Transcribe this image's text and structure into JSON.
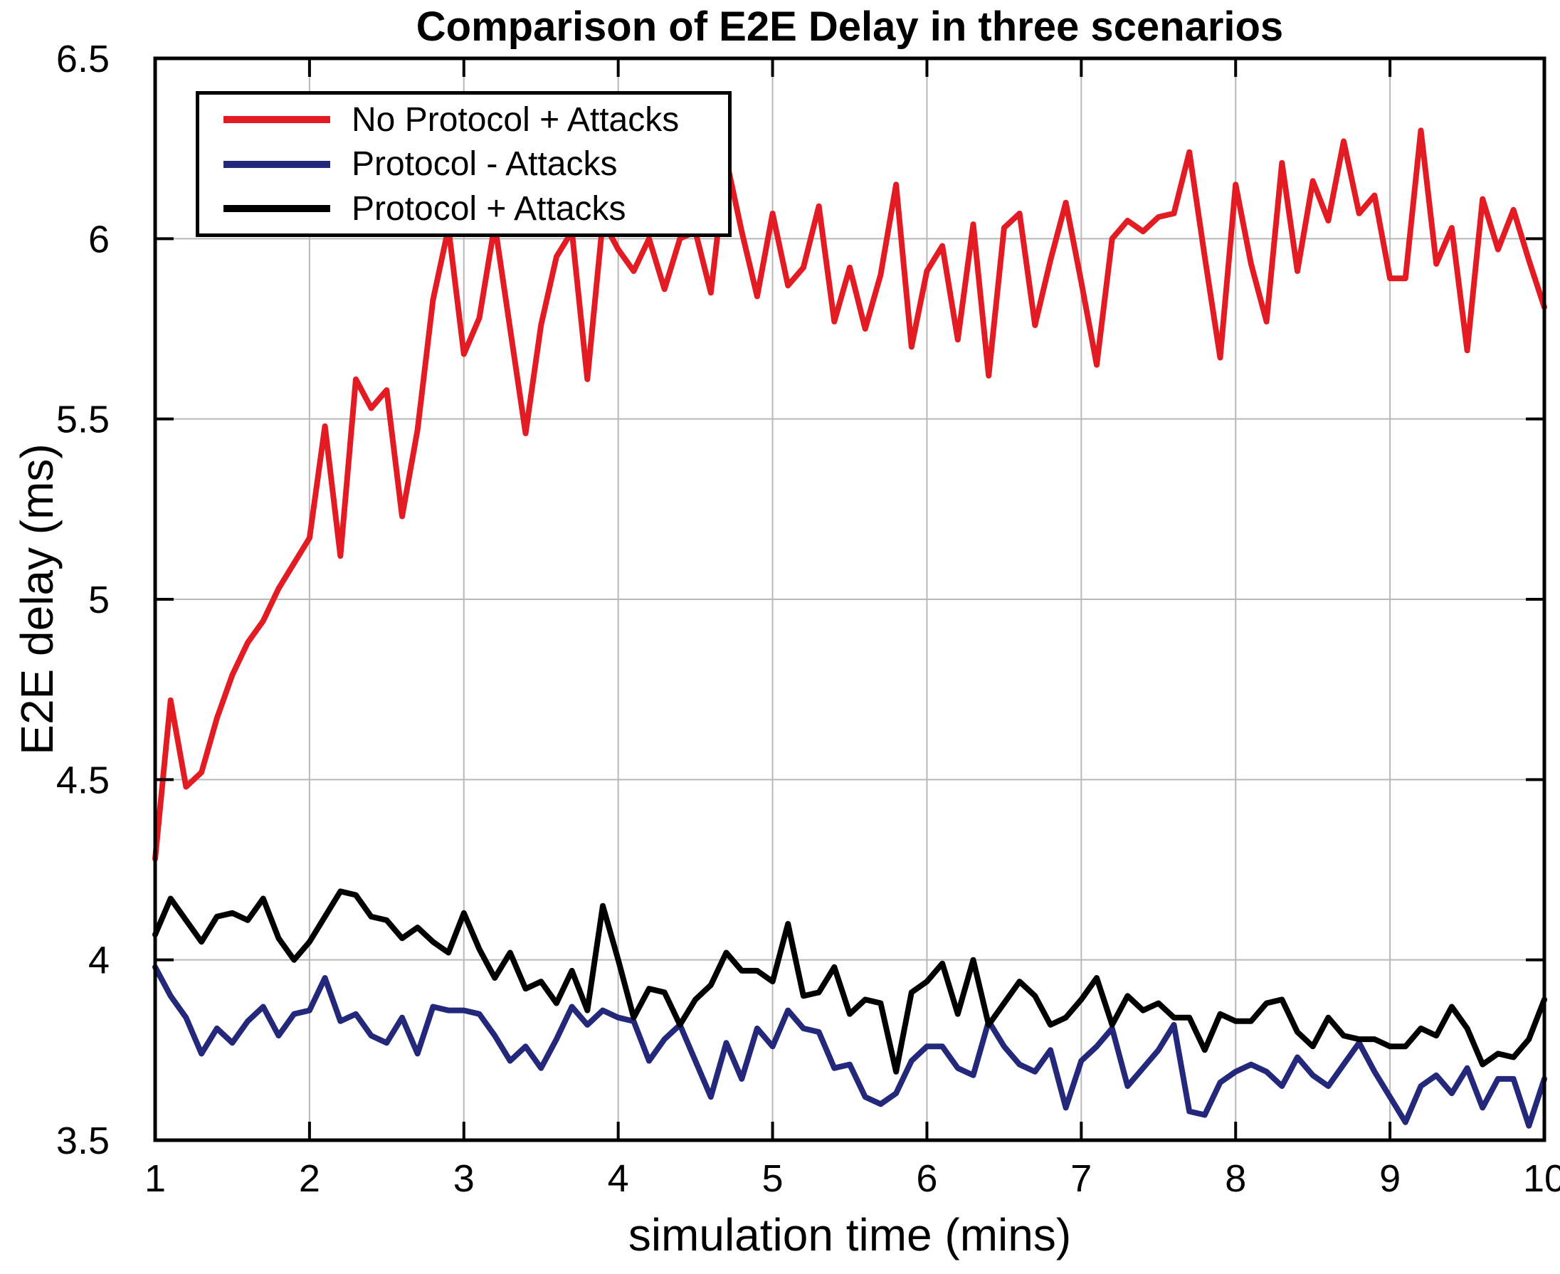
{
  "chart_data": {
    "type": "line",
    "title": "Comparison of E2E Delay in three scenarios",
    "xlabel": "simulation time (mins)",
    "ylabel": "E2E delay (ms)",
    "xlim": [
      1,
      10
    ],
    "ylim": [
      3.5,
      6.5
    ],
    "xticks": [
      1,
      2,
      3,
      4,
      5,
      6,
      7,
      8,
      9,
      10
    ],
    "xtick_labels": [
      "1",
      "2",
      "3",
      "4",
      "5",
      "6",
      "7",
      "8",
      "9",
      "10"
    ],
    "yticks": [
      3.5,
      4,
      4.5,
      5,
      5.5,
      6,
      6.5
    ],
    "ytick_labels": [
      "3.5",
      "4",
      "4.5",
      "5",
      "5.5",
      "6",
      "6.5"
    ],
    "grid": true,
    "grid_color": "#b8b8b8",
    "axis_color": "#000000",
    "background_color": "#ffffff",
    "legend": {
      "position": "upper-left",
      "border_color": "#000000",
      "background": "#ffffff"
    },
    "x": [
      1.0,
      1.1,
      1.2,
      1.3,
      1.4,
      1.5,
      1.6,
      1.7,
      1.8,
      1.9,
      2.0,
      2.1,
      2.2,
      2.3,
      2.4,
      2.5,
      2.6,
      2.7,
      2.8,
      2.9,
      3.0,
      3.1,
      3.2,
      3.3,
      3.4,
      3.5,
      3.6,
      3.7,
      3.8,
      3.9,
      4.0,
      4.1,
      4.2,
      4.3,
      4.4,
      4.5,
      4.6,
      4.7,
      4.8,
      4.9,
      5.0,
      5.1,
      5.2,
      5.3,
      5.4,
      5.5,
      5.6,
      5.7,
      5.8,
      5.9,
      6.0,
      6.1,
      6.2,
      6.3,
      6.4,
      6.5,
      6.6,
      6.7,
      6.8,
      6.9,
      7.0,
      7.1,
      7.2,
      7.3,
      7.4,
      7.5,
      7.6,
      7.7,
      7.8,
      7.9,
      8.0,
      8.1,
      8.2,
      8.3,
      8.4,
      8.5,
      8.6,
      8.7,
      8.8,
      8.9,
      9.0,
      9.1,
      9.2,
      9.3,
      9.4,
      9.5,
      9.6,
      9.7,
      9.8,
      9.9,
      10.0
    ],
    "series": [
      {
        "name": "No Protocol + Attacks",
        "color": "#e31b23",
        "values": [
          4.28,
          4.72,
          4.48,
          4.52,
          4.67,
          4.79,
          4.88,
          4.94,
          5.03,
          5.1,
          5.17,
          5.48,
          5.12,
          5.61,
          5.53,
          5.58,
          5.23,
          5.47,
          5.83,
          6.03,
          5.68,
          5.78,
          6.04,
          5.75,
          5.46,
          5.76,
          5.95,
          6.02,
          5.61,
          6.05,
          5.97,
          5.91,
          6.0,
          5.86,
          6.0,
          6.02,
          5.85,
          6.22,
          6.02,
          5.84,
          6.07,
          5.87,
          5.92,
          6.09,
          5.77,
          5.92,
          5.75,
          5.9,
          6.15,
          5.7,
          5.91,
          5.98,
          5.72,
          6.04,
          5.62,
          6.03,
          6.07,
          5.76,
          5.94,
          6.1,
          5.88,
          5.65,
          6.0,
          6.05,
          6.02,
          6.06,
          6.07,
          6.24,
          5.95,
          5.67,
          6.15,
          5.93,
          5.77,
          6.21,
          5.91,
          6.16,
          6.05,
          6.27,
          6.07,
          6.12,
          5.89,
          5.89,
          6.3,
          5.93,
          6.03,
          5.69,
          6.11,
          5.97,
          6.08,
          5.94,
          5.81
        ]
      },
      {
        "name": "Protocol - Attacks",
        "color": "#23287a",
        "values": [
          3.98,
          3.9,
          3.84,
          3.74,
          3.81,
          3.77,
          3.83,
          3.87,
          3.79,
          3.85,
          3.86,
          3.95,
          3.83,
          3.85,
          3.79,
          3.77,
          3.84,
          3.74,
          3.87,
          3.86,
          3.86,
          3.85,
          3.79,
          3.72,
          3.76,
          3.7,
          3.78,
          3.87,
          3.82,
          3.86,
          3.84,
          3.83,
          3.72,
          3.78,
          3.82,
          3.72,
          3.62,
          3.77,
          3.67,
          3.81,
          3.76,
          3.86,
          3.81,
          3.8,
          3.7,
          3.71,
          3.62,
          3.6,
          3.63,
          3.72,
          3.76,
          3.76,
          3.7,
          3.68,
          3.83,
          3.76,
          3.71,
          3.69,
          3.75,
          3.59,
          3.72,
          3.76,
          3.81,
          3.65,
          3.7,
          3.75,
          3.82,
          3.58,
          3.57,
          3.66,
          3.69,
          3.71,
          3.69,
          3.65,
          3.73,
          3.68,
          3.65,
          3.71,
          3.77,
          3.69,
          3.62,
          3.55,
          3.65,
          3.68,
          3.63,
          3.7,
          3.59,
          3.67,
          3.67,
          3.54,
          3.67
        ]
      },
      {
        "name": "Protocol + Attacks",
        "color": "#000000",
        "values": [
          4.07,
          4.17,
          4.11,
          4.05,
          4.12,
          4.13,
          4.11,
          4.17,
          4.06,
          4.0,
          4.05,
          4.12,
          4.19,
          4.18,
          4.12,
          4.11,
          4.06,
          4.09,
          4.05,
          4.02,
          4.13,
          4.03,
          3.95,
          4.02,
          3.92,
          3.94,
          3.88,
          3.97,
          3.86,
          4.15,
          4.0,
          3.84,
          3.92,
          3.91,
          3.82,
          3.89,
          3.93,
          4.02,
          3.97,
          3.97,
          3.94,
          4.1,
          3.9,
          3.91,
          3.98,
          3.85,
          3.89,
          3.88,
          3.69,
          3.91,
          3.94,
          3.99,
          3.85,
          4.0,
          3.82,
          3.88,
          3.94,
          3.9,
          3.82,
          3.84,
          3.89,
          3.95,
          3.82,
          3.9,
          3.86,
          3.88,
          3.84,
          3.84,
          3.75,
          3.85,
          3.83,
          3.83,
          3.88,
          3.89,
          3.8,
          3.76,
          3.84,
          3.79,
          3.78,
          3.78,
          3.76,
          3.76,
          3.81,
          3.79,
          3.87,
          3.81,
          3.71,
          3.74,
          3.73,
          3.78,
          3.89
        ]
      }
    ]
  }
}
